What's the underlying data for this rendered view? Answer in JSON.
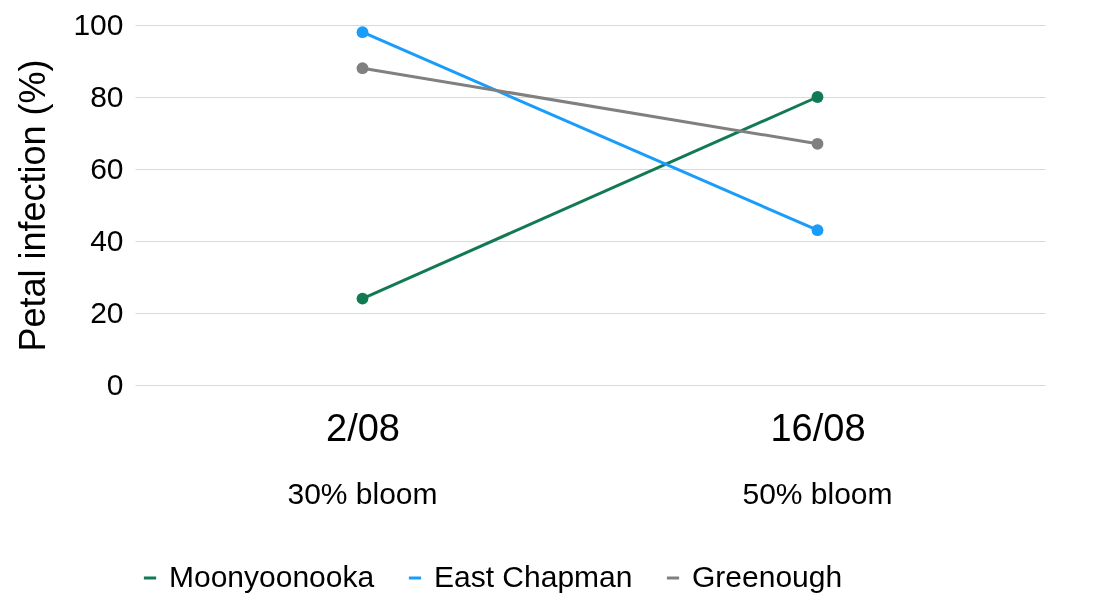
{
  "chart_data": {
    "type": "line",
    "ylabel": "Petal infection (%)",
    "categories": [
      "2/08",
      "16/08"
    ],
    "series": [
      {
        "name": "Moonyoonooka",
        "color": "#117a52",
        "values": [
          24,
          80
        ]
      },
      {
        "name": "East Chapman",
        "color": "#1a9cfb",
        "values": [
          98,
          43
        ]
      },
      {
        "name": "Greenough",
        "color": "#808080",
        "values": [
          88,
          67
        ]
      }
    ],
    "ylim": [
      0,
      100
    ],
    "yticks": [
      0,
      20,
      40,
      60,
      80,
      100
    ],
    "grid": "y",
    "legend": "bottom",
    "marker": "circle",
    "line_style": "solid",
    "annotations": [
      "30% bloom",
      "50% bloom"
    ]
  }
}
